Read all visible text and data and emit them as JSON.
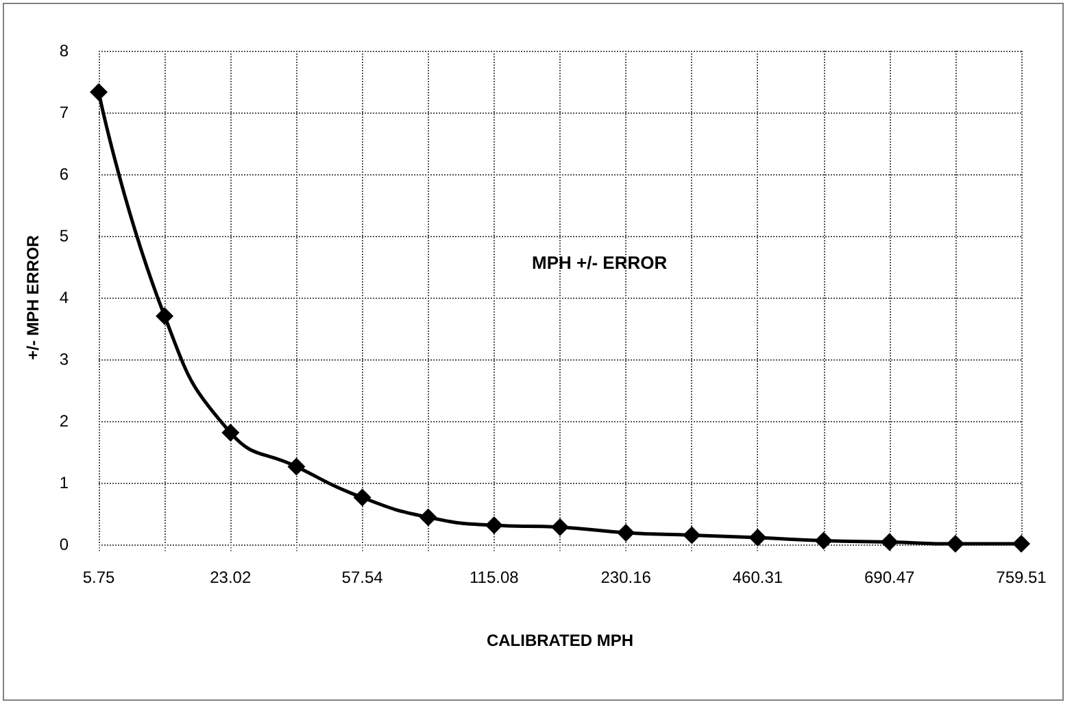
{
  "chart_data": {
    "type": "line",
    "title": "MPH +/- ERROR",
    "xlabel": "CALIBRATED MPH",
    "ylabel": "+/- MPH ERROR",
    "categories": [
      "5.75",
      null,
      "23.02",
      null,
      "57.54",
      null,
      "115.08",
      null,
      "230.16",
      null,
      "460.31",
      null,
      "690.47",
      null,
      "759.51"
    ],
    "series": [
      {
        "color": "#000000",
        "values": [
          7.33,
          3.7,
          1.81,
          1.26,
          0.76,
          0.44,
          0.31,
          0.28,
          0.19,
          0.15,
          0.11,
          0.06,
          0.04,
          0.01,
          0.01
        ]
      }
    ],
    "ylim": [
      0,
      8
    ],
    "yticks": [
      0,
      1,
      2,
      3,
      4,
      5,
      6,
      7,
      8
    ],
    "grid": true,
    "marker": "diamond",
    "line_style": "solid"
  }
}
